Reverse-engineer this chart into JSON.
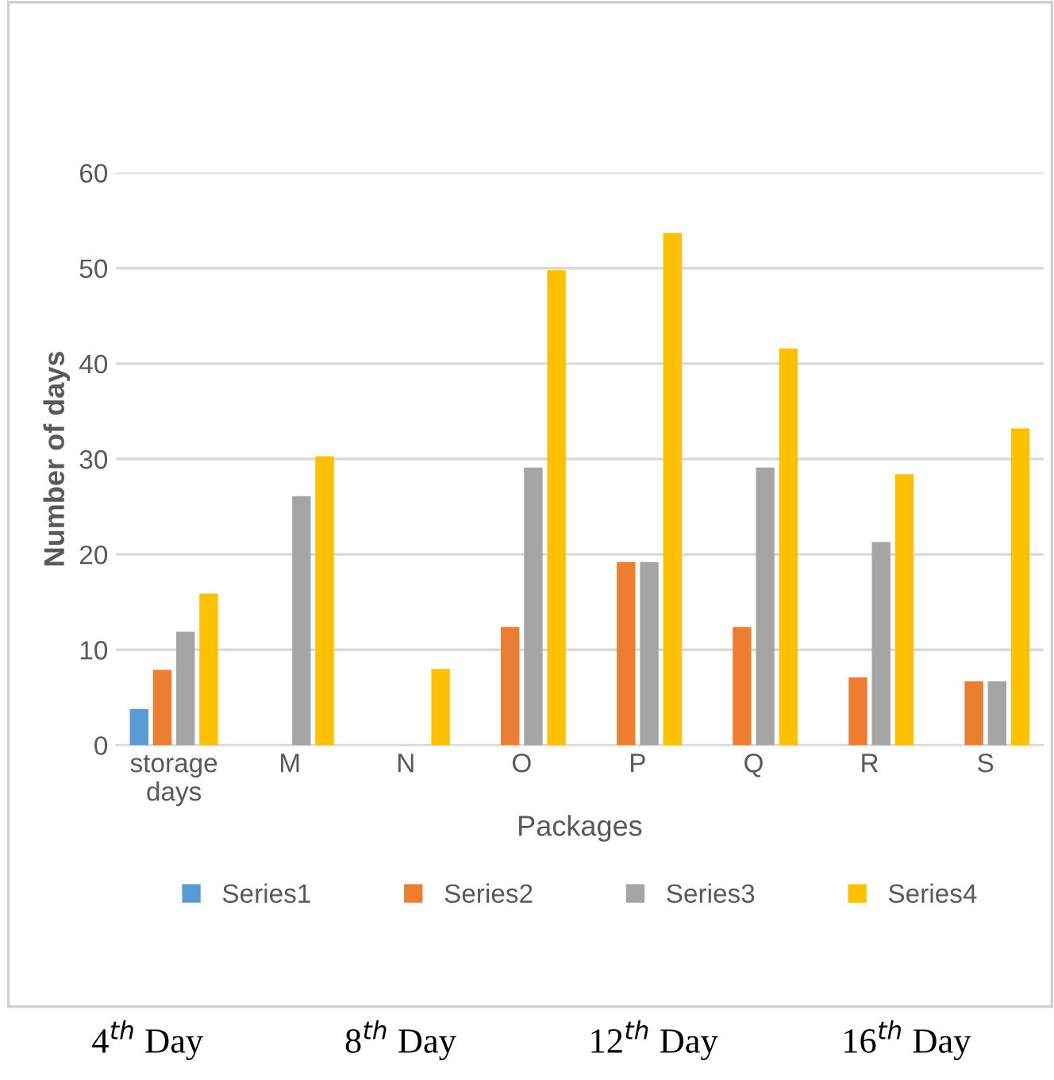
{
  "chart_data": {
    "type": "bar",
    "xlabel": "Packages",
    "ylabel": "Number of days",
    "categories": [
      "storage\ndays",
      "M",
      "N",
      "O",
      "P",
      "Q",
      "R",
      "S"
    ],
    "series": [
      {
        "name": "Series1",
        "color": "#5b9bd5",
        "values": [
          3.8,
          null,
          null,
          null,
          null,
          null,
          null,
          null
        ]
      },
      {
        "name": "Series2",
        "color": "#ed7d31",
        "values": [
          7.9,
          null,
          null,
          12.4,
          19.2,
          12.4,
          7.1,
          6.7
        ]
      },
      {
        "name": "Series3",
        "color": "#a5a5a5",
        "values": [
          11.9,
          26.1,
          null,
          29.1,
          19.2,
          29.1,
          21.3,
          6.7
        ]
      },
      {
        "name": "Series4",
        "color": "#ffc000",
        "values": [
          15.9,
          30.3,
          8,
          49.8,
          53.7,
          41.6,
          28.4,
          33.2
        ]
      }
    ],
    "ylim": [
      0,
      60
    ],
    "yticks": [
      0,
      10,
      20,
      30,
      40,
      50,
      60
    ],
    "grid": "y",
    "legend": "bottom",
    "annotations": [
      "4$^{th}$ Day",
      "8$^{th}$ Day",
      "12$^{th}$ Day",
      "16$^{th}$ Day"
    ]
  }
}
